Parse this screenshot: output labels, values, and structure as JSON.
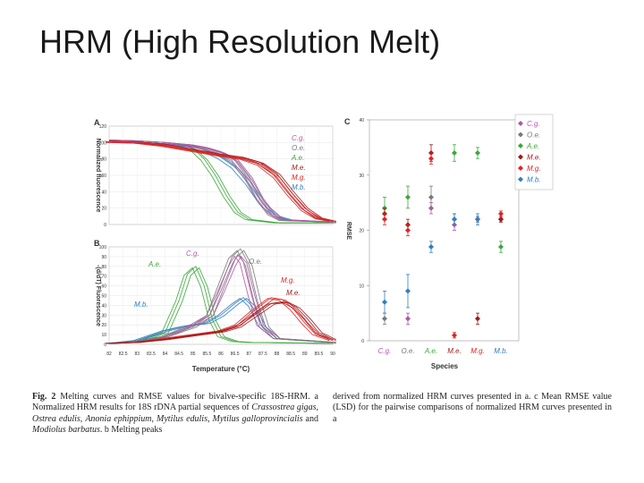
{
  "slide": {
    "title": "HRM (High Resolution Melt)"
  },
  "figure": {
    "caption_left": {
      "fig_label": "Fig. 2",
      "text_1": "Melting curves and RMSE values for bivalve-specific 18S-HRM. a Normalized HRM results for 18S rDNA partial sequences of ",
      "sp1": "Crassostrea gigas",
      "sep1": ", ",
      "sp2": "Ostrea edulis",
      "sep2": ", ",
      "sp3": "Anonia ephippium",
      "sep3": ", ",
      "sp4": "Mytilus edulis",
      "sep4": ", ",
      "sp5": "Mytilus galloprovincialis",
      "and": " and ",
      "sp6": "Modiolus barbatus",
      "text_2": ". b Melting peaks"
    },
    "caption_right": "derived from normalized HRM curves presented in a. c Mean RMSE value (LSD) for the pairwise comparisons of normalized HRM curves presented in a",
    "species_colors": {
      "C.g.": "#b455a8",
      "O.e.": "#7a7a7a",
      "A.e.": "#3aa83a",
      "M.e.": "#9e1a1a",
      "M.g.": "#e02424",
      "M.b.": "#2f7fbf"
    }
  },
  "chart_data": [
    {
      "panel": "A",
      "type": "line",
      "ylabel": "Normalized fluorescence",
      "yticks": [
        "0",
        "20",
        "40",
        "60",
        "80",
        "100",
        "120"
      ],
      "ylim": [
        0,
        120
      ],
      "xlim": [
        82,
        90
      ],
      "grid": true,
      "legend": [
        "C.g.",
        "O.e.",
        "A.e.",
        "M.e.",
        "M.g.",
        "M.b."
      ],
      "legend_placement": "right",
      "series": [
        {
          "name": "A.e.",
          "key": "A.e.",
          "x": [
            82,
            83,
            84,
            84.6,
            85,
            85.4,
            85.8,
            86.2,
            86.6,
            87,
            88,
            90
          ],
          "y": [
            103,
            102,
            100,
            98,
            93,
            80,
            60,
            35,
            15,
            6,
            2,
            2
          ]
        },
        {
          "name": "M.b.",
          "key": "M.b.",
          "x": [
            82,
            83,
            84,
            85,
            85.5,
            86,
            86.5,
            87,
            87.5,
            88,
            88.5,
            90
          ],
          "y": [
            103,
            102,
            100,
            96,
            90,
            82,
            70,
            50,
            25,
            10,
            5,
            3
          ]
        },
        {
          "name": "O.e.",
          "key": "O.e.",
          "x": [
            82,
            83,
            84,
            85,
            85.5,
            86,
            86.5,
            87,
            87.4,
            87.8,
            88.2,
            90
          ],
          "y": [
            103,
            102,
            100,
            97,
            93,
            88,
            78,
            55,
            30,
            12,
            5,
            3
          ]
        },
        {
          "name": "C.g.",
          "key": "C.g.",
          "x": [
            82,
            83,
            84,
            85,
            85.5,
            86,
            86.5,
            87,
            87.4,
            87.8,
            88.2,
            90
          ],
          "y": [
            103,
            102,
            100,
            97,
            94,
            89,
            80,
            58,
            32,
            14,
            6,
            3
          ]
        },
        {
          "name": "M.e.",
          "key": "M.e.",
          "x": [
            82,
            83,
            84,
            85,
            86,
            86.8,
            87.4,
            88,
            88.5,
            89,
            89.5,
            90
          ],
          "y": [
            102,
            101,
            98,
            92,
            86,
            82,
            76,
            62,
            40,
            20,
            8,
            4
          ]
        },
        {
          "name": "M.g.",
          "key": "M.g.",
          "x": [
            82,
            83,
            84,
            85,
            86,
            86.8,
            87.4,
            88,
            88.5,
            89,
            89.5,
            90
          ],
          "y": [
            102,
            101,
            97,
            91,
            85,
            81,
            74,
            58,
            36,
            17,
            7,
            4
          ]
        }
      ]
    },
    {
      "panel": "B",
      "type": "line",
      "xlabel": "Temperature (°C)",
      "ylabel": "-(d/dT) Fluorescence",
      "xticks": [
        "82",
        "82.5",
        "83",
        "83.5",
        "84",
        "84.5",
        "85",
        "85.5",
        "86",
        "86.5",
        "87",
        "87.5",
        "88",
        "88.5",
        "89",
        "89.5",
        "90"
      ],
      "yticks": [
        "0",
        "10",
        "20",
        "30",
        "40",
        "50",
        "60",
        "70",
        "80",
        "90",
        "100"
      ],
      "ylim": [
        0,
        100
      ],
      "xlim": [
        82,
        90
      ],
      "grid": true,
      "annotations": [
        {
          "text": "A.e.",
          "key": "A.e."
        },
        {
          "text": "C.g.",
          "key": "C.g."
        },
        {
          "text": "O.e.",
          "key": "O.e."
        },
        {
          "text": "M.g.",
          "key": "M.g."
        },
        {
          "text": "M.e.",
          "key": "M.e."
        },
        {
          "text": "M.b.",
          "key": "M.b."
        }
      ],
      "series": [
        {
          "name": "A.e.",
          "key": "A.e.",
          "x": [
            82,
            83,
            84,
            84.5,
            84.8,
            85.1,
            85.4,
            85.7,
            86,
            86.5,
            87,
            90
          ],
          "y": [
            1,
            3,
            12,
            45,
            72,
            80,
            60,
            25,
            8,
            3,
            2,
            1
          ]
        },
        {
          "name": "M.b.",
          "key": "M.b.",
          "x": [
            82,
            83,
            84,
            84.6,
            85,
            85.5,
            86,
            86.5,
            86.8,
            87.1,
            87.5,
            88,
            90
          ],
          "y": [
            1,
            4,
            14,
            18,
            20,
            22,
            30,
            42,
            48,
            40,
            18,
            6,
            2
          ]
        },
        {
          "name": "C.g.",
          "key": "C.g.",
          "x": [
            82,
            83,
            84,
            85,
            85.6,
            86,
            86.4,
            86.6,
            86.8,
            87.1,
            87.4,
            88,
            90
          ],
          "y": [
            1,
            3,
            8,
            20,
            30,
            55,
            82,
            92,
            85,
            50,
            20,
            6,
            2
          ]
        },
        {
          "name": "O.e.",
          "key": "O.e.",
          "x": [
            82,
            83,
            84,
            85,
            85.6,
            86,
            86.4,
            86.7,
            87,
            87.3,
            87.6,
            88,
            90
          ],
          "y": [
            1,
            3,
            8,
            18,
            30,
            60,
            90,
            98,
            82,
            45,
            18,
            6,
            2
          ]
        },
        {
          "name": "M.g.",
          "key": "M.g.",
          "x": [
            82,
            83,
            84,
            85,
            86,
            86.6,
            87.2,
            87.8,
            88.2,
            88.6,
            89,
            89.4,
            90
          ],
          "y": [
            1,
            2,
            6,
            10,
            14,
            20,
            35,
            48,
            46,
            36,
            22,
            10,
            4
          ]
        },
        {
          "name": "M.e.",
          "key": "M.e.",
          "x": [
            82,
            83,
            84,
            85,
            86,
            86.6,
            87.2,
            87.8,
            88.3,
            88.7,
            89.1,
            89.5,
            90
          ],
          "y": [
            1,
            2,
            5,
            9,
            13,
            18,
            30,
            42,
            44,
            38,
            26,
            12,
            5
          ]
        }
      ]
    },
    {
      "panel": "C",
      "type": "scatter",
      "xlabel": "Species",
      "ylabel": "RMSE",
      "categories": [
        "C.g.",
        "O.e.",
        "A.e.",
        "M.e.",
        "M.g.",
        "M.b."
      ],
      "yticks": [
        "0",
        "10",
        "20",
        "30",
        "40"
      ],
      "ylim": [
        0,
        40
      ],
      "grid": false,
      "legend": [
        "C.g.",
        "O.e.",
        "A.e.",
        "M.e.",
        "M.g.",
        "M.b."
      ],
      "legend_placement": "top-right",
      "series": [
        {
          "name": "C.g.",
          "key": "C.g.",
          "values": [
            null,
            4,
            24,
            21,
            22,
            22
          ],
          "err": [
            0,
            1,
            1,
            1,
            0.5,
            0.5
          ]
        },
        {
          "name": "O.e.",
          "key": "O.e.",
          "values": [
            4,
            null,
            26,
            22,
            22,
            22
          ],
          "err": [
            1,
            0,
            2,
            1,
            0.5,
            0.5
          ]
        },
        {
          "name": "A.e.",
          "key": "A.e.",
          "values": [
            24,
            26,
            null,
            34,
            34,
            17
          ],
          "err": [
            2,
            2,
            0,
            1.5,
            1,
            1
          ]
        },
        {
          "name": "M.e.",
          "key": "M.e.",
          "values": [
            23,
            21,
            34,
            null,
            4,
            22
          ],
          "err": [
            1,
            1,
            1.5,
            0,
            1,
            0.5
          ]
        },
        {
          "name": "M.g.",
          "key": "M.g.",
          "values": [
            22,
            20,
            33,
            1,
            null,
            23
          ],
          "err": [
            1,
            1,
            1,
            0.5,
            0,
            0.5
          ]
        },
        {
          "name": "M.b.",
          "key": "M.b.",
          "values": [
            7,
            9,
            17,
            22,
            22,
            null
          ],
          "err": [
            2,
            3,
            1,
            1,
            1,
            0
          ]
        }
      ]
    }
  ]
}
